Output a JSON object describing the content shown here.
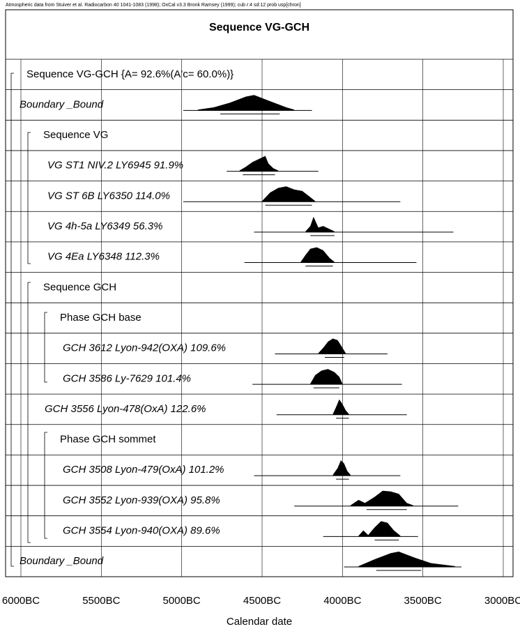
{
  "header": "Atmospheric data from Stuiver et al. Radiocarbon 40 1041-1083 (1998); OxCal v3.3 Bronk Ramsey (1999); cub r:4 sd:12 prob usp[chron]",
  "chart_data": {
    "type": "multiplot",
    "title": "Sequence VG-GCH",
    "x_label": "Calendar date",
    "xlim": [
      6000,
      3000
    ],
    "xticks": [
      {
        "value": 6000,
        "label": "6000BC"
      },
      {
        "value": 5500,
        "label": "5500BC"
      },
      {
        "value": 5000,
        "label": "5000BC"
      },
      {
        "value": 4500,
        "label": "4500BC"
      },
      {
        "value": 4000,
        "label": "4000BC"
      },
      {
        "value": 3500,
        "label": "3500BC"
      },
      {
        "value": 3000,
        "label": "3000BC"
      }
    ],
    "grid": true,
    "items": [
      {
        "label": "Sequence VG-GCH {A= 92.6%(A'c= 60.0%)}"
      },
      {
        "label": "Boundary _Bound",
        "range": [
          4990,
          4190
        ],
        "hpd": [
          4760,
          4390
        ],
        "posterior_x": [
          4900,
          4800,
          4700,
          4600,
          4550,
          4450,
          4350,
          4300
        ],
        "posterior_y": [
          0.05,
          0.2,
          0.5,
          0.9,
          1,
          0.6,
          0.2,
          0.05
        ]
      },
      {
        "label": "Sequence VG"
      },
      {
        "label": "VG ST1 NIV.2 LY6945  91.9%",
        "range": [
          4720,
          4150
        ],
        "hpd": [
          4620,
          4420
        ],
        "posterior_x": [
          4640,
          4600,
          4560,
          4520,
          4480,
          4460,
          4430,
          4400
        ],
        "posterior_y": [
          0.05,
          0.3,
          0.6,
          0.8,
          1,
          0.5,
          0.2,
          0.05
        ]
      },
      {
        "label": "VG ST 6B  LY6350  114.0%",
        "range": [
          4990,
          3640
        ],
        "hpd": [
          4480,
          4190
        ],
        "posterior_x": [
          4500,
          4450,
          4400,
          4350,
          4300,
          4250,
          4200,
          4170
        ],
        "posterior_y": [
          0.05,
          0.6,
          0.9,
          1,
          0.8,
          0.7,
          0.3,
          0.05
        ]
      },
      {
        "label": "VG 4h-5a LY6349  56.3%",
        "range": [
          4550,
          3310
        ],
        "hpd": [
          4200,
          4050
        ],
        "posterior_x": [
          4230,
          4200,
          4180,
          4150,
          4120,
          4080,
          4050
        ],
        "posterior_y": [
          0.05,
          0.4,
          1,
          0.3,
          0.4,
          0.2,
          0.05
        ]
      },
      {
        "label": "VG 4Ea  LY6348  112.3%",
        "range": [
          4610,
          3540
        ],
        "hpd": [
          4230,
          4060
        ],
        "posterior_x": [
          4260,
          4230,
          4200,
          4160,
          4120,
          4080,
          4050
        ],
        "posterior_y": [
          0.05,
          0.5,
          0.9,
          1,
          0.8,
          0.3,
          0.05
        ]
      },
      {
        "label": "Sequence GCH"
      },
      {
        "label": "Phase GCH base"
      },
      {
        "label": "GCH 3612  Lyon-942(OXA)  109.6%",
        "range": [
          4420,
          3720
        ],
        "hpd": [
          4110,
          3990
        ],
        "posterior_x": [
          4150,
          4120,
          4090,
          4060,
          4030,
          4000,
          3980
        ],
        "posterior_y": [
          0.05,
          0.4,
          0.8,
          1,
          0.9,
          0.4,
          0.05
        ]
      },
      {
        "label": "GCH 3586 Ly-7629  101.4%",
        "range": [
          4560,
          3630
        ],
        "hpd": [
          4180,
          4020
        ],
        "posterior_x": [
          4200,
          4170,
          4130,
          4090,
          4050,
          4020,
          4000
        ],
        "posterior_y": [
          0.05,
          0.6,
          0.9,
          1,
          0.8,
          0.5,
          0.05
        ]
      },
      {
        "label": "GCH 3556 Lyon-478(OxA)  122.6%",
        "range": [
          4410,
          3600
        ],
        "hpd": [
          4040,
          3960
        ],
        "posterior_x": [
          4060,
          4040,
          4020,
          4000,
          3980,
          3960
        ],
        "posterior_y": [
          0.05,
          0.5,
          1,
          0.7,
          0.3,
          0.05
        ]
      },
      {
        "label": "Phase GCH sommet"
      },
      {
        "label": "GCH 3508 Lyon-479(OxA)  101.2%",
        "range": [
          4550,
          3640
        ],
        "hpd": [
          4040,
          3960
        ],
        "posterior_x": [
          4060,
          4030,
          4010,
          3990,
          3970,
          3950
        ],
        "posterior_y": [
          0.05,
          0.5,
          1,
          0.8,
          0.3,
          0.05
        ]
      },
      {
        "label": "GCH 3552 Lyon-939(OXA)  95.8%",
        "range": [
          4300,
          3280
        ],
        "hpd": [
          3850,
          3600
        ],
        "posterior_x": [
          3950,
          3900,
          3860,
          3800,
          3750,
          3700,
          3650,
          3600,
          3560
        ],
        "posterior_y": [
          0.05,
          0.4,
          0.2,
          0.6,
          1,
          0.95,
          0.8,
          0.2,
          0.05
        ]
      },
      {
        "label": "GCH 3554 Lyon-940(OXA)  89.6%",
        "range": [
          4120,
          3530
        ],
        "hpd": [
          3800,
          3650
        ],
        "posterior_x": [
          3900,
          3870,
          3840,
          3800,
          3760,
          3720,
          3680,
          3640
        ],
        "posterior_y": [
          0.05,
          0.4,
          0.1,
          0.6,
          1,
          0.9,
          0.4,
          0.05
        ]
      },
      {
        "label": "Boundary _Bound",
        "range": [
          3990,
          3260
        ],
        "hpd": [
          3790,
          3510
        ],
        "posterior_x": [
          3900,
          3800,
          3700,
          3650,
          3550,
          3450,
          3300
        ],
        "posterior_y": [
          0.05,
          0.5,
          0.9,
          1,
          0.6,
          0.25,
          0.05
        ]
      }
    ]
  }
}
